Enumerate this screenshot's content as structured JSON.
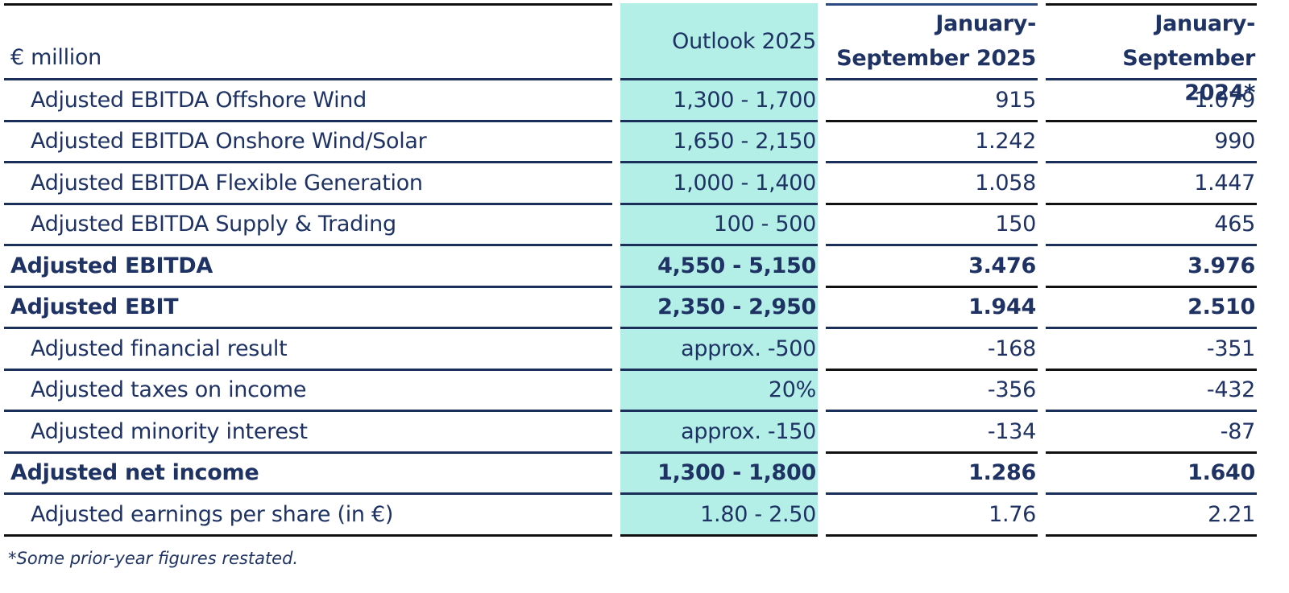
{
  "table": {
    "header": [
      "€ million",
      "Outlook 2025",
      "January-September 2025",
      "January-September 2024*"
    ],
    "rows": [
      {
        "label": "Adjusted EBITDA Offshore Wind",
        "outlook": "1,300 - 1,700",
        "jan_sep_2025": "915",
        "jan_sep_2024": "1.079",
        "bold": false
      },
      {
        "label": "Adjusted EBITDA Onshore Wind/Solar",
        "outlook": "1,650 - 2,150",
        "jan_sep_2025": "1.242",
        "jan_sep_2024": "990",
        "bold": false
      },
      {
        "label": "Adjusted EBITDA Flexible Generation",
        "outlook": "1,000 - 1,400",
        "jan_sep_2025": "1.058",
        "jan_sep_2024": "1.447",
        "bold": false
      },
      {
        "label": "Adjusted EBITDA Supply & Trading",
        "outlook": "100 - 500",
        "jan_sep_2025": "150",
        "jan_sep_2024": "465",
        "bold": false
      },
      {
        "label": "Adjusted EBITDA",
        "outlook": "4,550 - 5,150",
        "jan_sep_2025": "3.476",
        "jan_sep_2024": "3.976",
        "bold": true
      },
      {
        "label": "Adjusted EBIT",
        "outlook": "2,350 - 2,950",
        "jan_sep_2025": "1.944",
        "jan_sep_2024": "2.510",
        "bold": true
      },
      {
        "label": "Adjusted financial result",
        "outlook": "approx. -500",
        "jan_sep_2025": "-168",
        "jan_sep_2024": "-351",
        "bold": false
      },
      {
        "label": "Adjusted taxes on income",
        "outlook": "20%",
        "jan_sep_2025": "-356",
        "jan_sep_2024": "-432",
        "bold": false
      },
      {
        "label": "Adjusted minority interest",
        "outlook": "approx. -150",
        "jan_sep_2025": "-134",
        "jan_sep_2024": "-87",
        "bold": false
      },
      {
        "label": "Adjusted net income",
        "outlook": "1,300 - 1,800",
        "jan_sep_2025": "1.286",
        "jan_sep_2024": "1.640",
        "bold": true
      },
      {
        "label": "Adjusted earnings per share (in €)",
        "outlook": "1.80 - 2.50",
        "jan_sep_2025": "1.76",
        "jan_sep_2024": "2.21",
        "bold": false
      }
    ],
    "footnote": "*Some prior-year figures restated."
  }
}
